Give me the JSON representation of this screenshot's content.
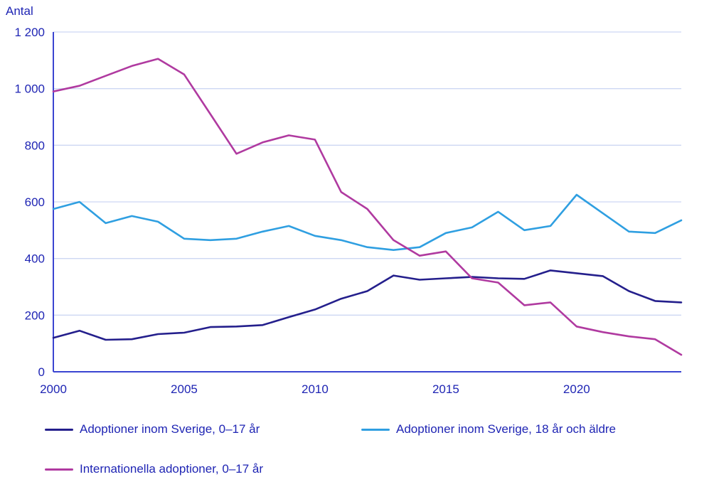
{
  "style": {
    "background": "#ffffff",
    "text_color": "#1f25b4",
    "axis_color": "#3b45d1",
    "grid_color": "#cdd7f3"
  },
  "chart_data": {
    "type": "line",
    "title": "",
    "ylabel": "Antal",
    "xlabel": "",
    "x": [
      2000,
      2001,
      2002,
      2003,
      2004,
      2005,
      2006,
      2007,
      2008,
      2009,
      2010,
      2011,
      2012,
      2013,
      2014,
      2015,
      2016,
      2017,
      2018,
      2019,
      2020,
      2021,
      2022,
      2023,
      2024
    ],
    "x_ticks": [
      2000,
      2005,
      2010,
      2015,
      2020
    ],
    "x_tick_labels": [
      "2000",
      "2005",
      "2010",
      "2015",
      "2020"
    ],
    "ylim": [
      0,
      1200
    ],
    "y_ticks": [
      0,
      200,
      400,
      600,
      800,
      1000,
      1200
    ],
    "y_tick_labels": [
      "0",
      "200",
      "400",
      "600",
      "800",
      "1 000",
      "1 200"
    ],
    "grid": "horizontal",
    "legend_position": "bottom",
    "series": [
      {
        "name": "Adoptioner inom Sverige, 0–17 år",
        "color": "#241f8c",
        "values": [
          120,
          145,
          113,
          115,
          133,
          138,
          158,
          160,
          165,
          193,
          220,
          258,
          285,
          340,
          325,
          330,
          335,
          330,
          328,
          358,
          348,
          338,
          285,
          250,
          245
        ]
      },
      {
        "name": "Adoptioner inom Sverige, 18 år och äldre",
        "color": "#2f9fe1",
        "values": [
          575,
          600,
          525,
          550,
          530,
          470,
          465,
          470,
          495,
          515,
          480,
          465,
          440,
          430,
          440,
          490,
          510,
          565,
          500,
          515,
          625,
          560,
          495,
          490,
          535
        ]
      },
      {
        "name": "Internationella adoptioner, 0–17 år",
        "color": "#b03aa0",
        "values": [
          990,
          1010,
          1045,
          1080,
          1105,
          1050,
          910,
          770,
          810,
          835,
          820,
          635,
          575,
          465,
          410,
          425,
          330,
          315,
          235,
          245,
          160,
          140,
          125,
          115,
          60
        ]
      }
    ]
  }
}
